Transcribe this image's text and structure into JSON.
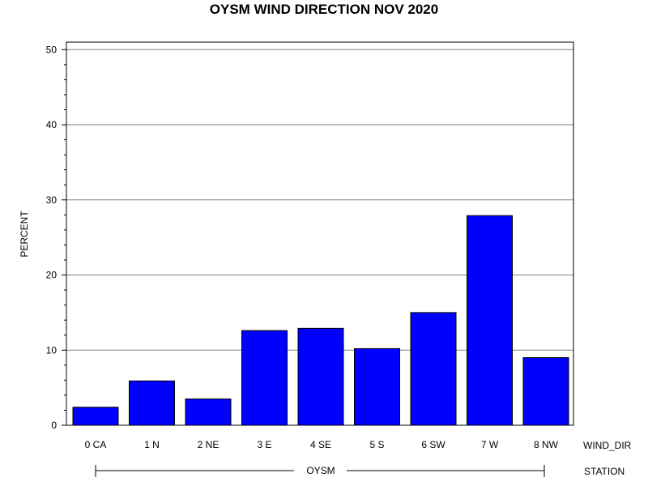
{
  "chart_data": {
    "type": "bar",
    "title": "OYSM WIND DIRECTION NOV 2020",
    "ylabel": "PERCENT",
    "categories": [
      "0 CA",
      "1 N",
      "2 NE",
      "3 E",
      "4 SE",
      "5 S",
      "6 SW",
      "7 W",
      "8 NW"
    ],
    "values": [
      2.4,
      5.9,
      3.5,
      12.6,
      12.9,
      10.2,
      15.0,
      27.9,
      9.0
    ],
    "ylim": [
      0,
      51
    ],
    "yticks": [
      "0",
      "10",
      "20",
      "30",
      "40",
      "50"
    ],
    "grid": true,
    "bar_color": "#0000ff",
    "x_axis_name": "WIND_DIR",
    "group_label": "OYSM",
    "group_axis_name": "STATION"
  }
}
